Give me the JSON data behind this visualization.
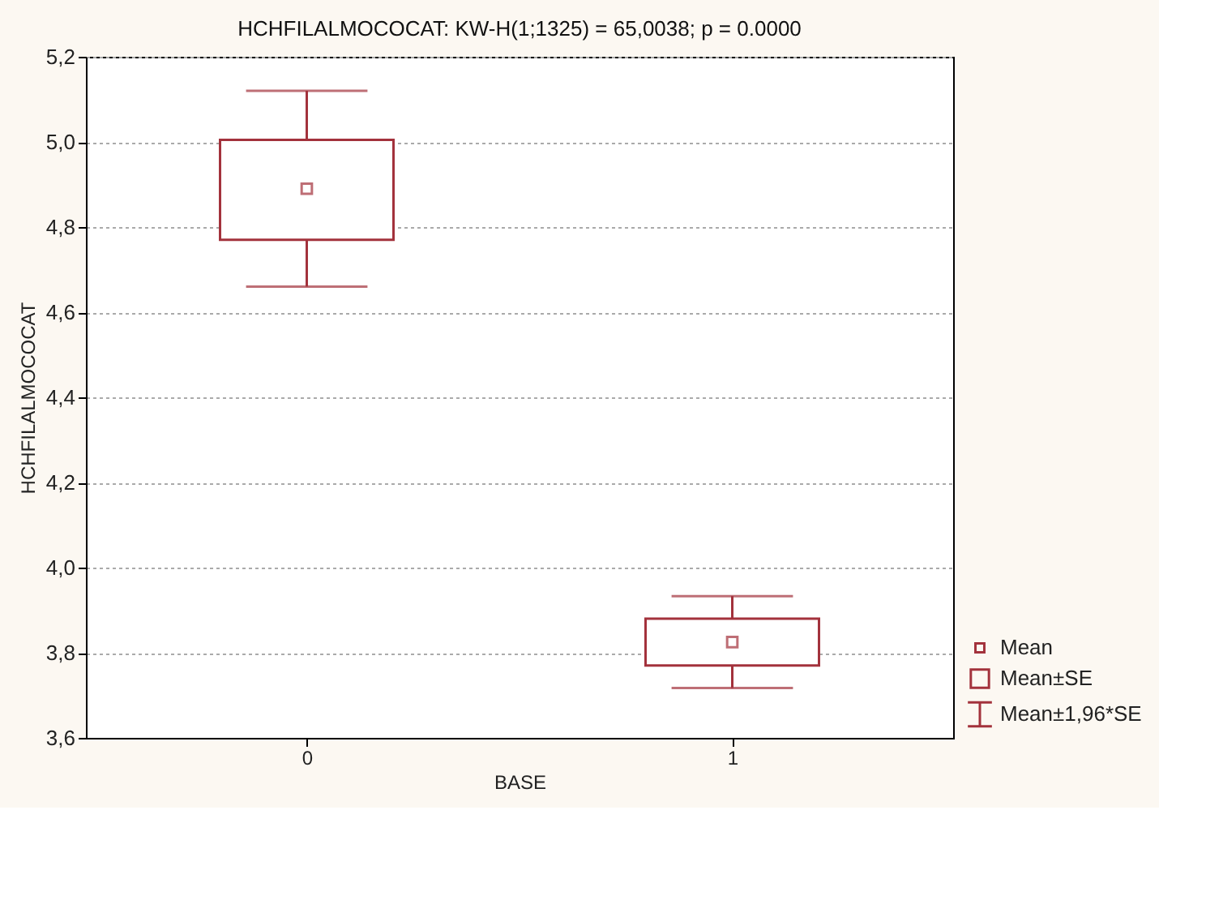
{
  "chart_data": {
    "type": "box",
    "title": "HCHFILALMOCOCAT:  KW-H(1;1325) = 65,0038; p = 0.0000",
    "xlabel": "BASE",
    "ylabel": "HCHFILALMOCOCAT",
    "categories": [
      "0",
      "1"
    ],
    "boxes": [
      {
        "low": 4.66,
        "q1": 4.77,
        "q3": 5.005,
        "high": 5.12,
        "mean": 4.89
      },
      {
        "low": 3.717,
        "q1": 3.77,
        "q3": 3.88,
        "high": 3.933,
        "mean": 3.825
      }
    ],
    "color": "#a3323c",
    "ylim": [
      3.6,
      5.2
    ],
    "yticks": [
      {
        "value": 3.6,
        "label": "3,6"
      },
      {
        "value": 3.8,
        "label": "3,8"
      },
      {
        "value": 4.0,
        "label": "4,0"
      },
      {
        "value": 4.2,
        "label": "4,2"
      },
      {
        "value": 4.4,
        "label": "4,4"
      },
      {
        "value": 4.6,
        "label": "4,6"
      },
      {
        "value": 4.8,
        "label": "4,8"
      },
      {
        "value": 5.0,
        "label": "5,0"
      },
      {
        "value": 5.2,
        "label": "5,2"
      }
    ],
    "grid": "y",
    "annotations": [
      "Mean",
      "Mean±SE",
      "Mean±1,96*SE"
    ]
  }
}
